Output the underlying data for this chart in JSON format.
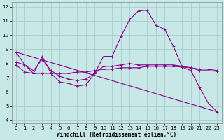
{
  "xlabel": "Windchill (Refroidissement éolien,°C)",
  "bg_color": "#c8e8e8",
  "line_color": "#880088",
  "grid_color": "#aacccc",
  "xlim": [
    -0.5,
    23.5
  ],
  "ylim": [
    3.8,
    12.3
  ],
  "xticks": [
    0,
    1,
    2,
    3,
    4,
    5,
    6,
    7,
    8,
    9,
    10,
    11,
    12,
    13,
    14,
    15,
    16,
    17,
    18,
    19,
    20,
    21,
    22,
    23
  ],
  "yticks": [
    4,
    5,
    6,
    7,
    8,
    9,
    10,
    11,
    12
  ],
  "curve1_x": [
    0,
    1,
    2,
    3,
    4,
    5,
    6,
    7,
    8,
    9,
    10,
    11,
    12,
    13,
    14,
    15,
    16,
    17,
    18,
    19,
    20,
    21,
    22,
    23
  ],
  "curve1_y": [
    8.8,
    7.9,
    7.3,
    8.5,
    7.3,
    6.7,
    6.6,
    6.4,
    6.5,
    7.3,
    8.5,
    8.5,
    9.9,
    11.1,
    11.7,
    11.75,
    10.7,
    10.4,
    9.2,
    7.75,
    7.5,
    6.3,
    5.2,
    4.6
  ],
  "curve2_x": [
    0,
    1,
    2,
    3,
    4,
    5,
    6,
    7,
    8,
    9,
    10,
    11,
    12,
    13,
    14,
    15,
    16,
    17,
    18,
    19,
    20,
    21,
    22,
    23
  ],
  "curve2_y": [
    7.9,
    7.4,
    7.3,
    7.3,
    7.3,
    7.3,
    7.3,
    7.4,
    7.4,
    7.5,
    7.6,
    7.6,
    7.7,
    7.7,
    7.7,
    7.8,
    7.8,
    7.8,
    7.8,
    7.75,
    7.7,
    7.6,
    7.6,
    7.5
  ],
  "curve3_x": [
    0,
    1,
    2,
    3,
    4,
    5,
    6,
    7,
    8,
    9,
    10,
    11,
    12,
    13,
    14,
    15,
    16,
    17,
    18,
    19,
    20,
    21,
    22,
    23
  ],
  "curve3_y": [
    8.1,
    7.9,
    7.5,
    8.3,
    7.5,
    7.1,
    6.9,
    6.8,
    6.9,
    7.3,
    7.8,
    7.8,
    7.9,
    8.0,
    7.9,
    7.9,
    7.9,
    7.9,
    7.9,
    7.8,
    7.7,
    7.5,
    7.5,
    7.45
  ],
  "curve4_x": [
    0,
    23
  ],
  "curve4_y": [
    8.8,
    4.6
  ]
}
